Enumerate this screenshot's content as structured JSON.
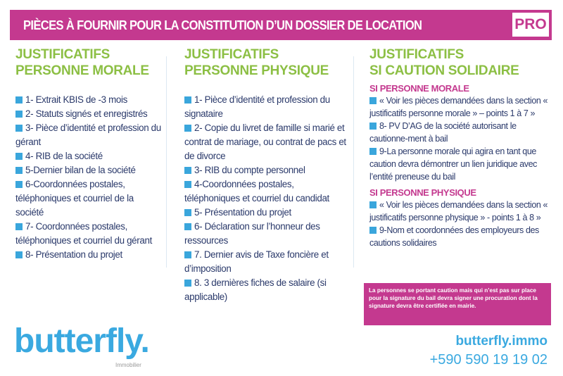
{
  "header": {
    "title": "PIÈCES À FOURNIR POUR LA CONSTITUTION D’UN DOSSIER DE LOCATION",
    "badge": "PRO"
  },
  "columns": [
    {
      "heading1": "JUSTIFICATIFS",
      "heading2": "PERSONNE MORALE",
      "items": [
        "1- Extrait KBIS de -3 mois",
        "2- Statuts signés et enregistrés",
        "3- Pièce d’identité et profession du gérant",
        "4- RIB de la société",
        "5-Dernier bilan de la société",
        "6-Coordonnées postales, téléphoniques et courriel de la société",
        "7- Coordonnées postales, téléphoniques et courriel du gérant",
        "8- Présentation du projet"
      ]
    },
    {
      "heading1": "JUSTIFICATIFS",
      "heading2": "PERSONNE PHYSIQUE",
      "items": [
        "1- Pièce d’identité et profession du signataire",
        "2- Copie du livret de famille si marié et contrat de mariage, ou contrat de pacs et de divorce",
        "3- RIB du compte personnel",
        "4-Coordonnées postales, téléphoniques et courriel du candidat",
        "5- Présentation du projet",
        "6- Déclaration sur l’honneur des ressources",
        "7. Dernier avis de Taxe foncière et d’imposition",
        "8. 3 dernières fiches de salaire (si applicable)"
      ]
    },
    {
      "heading1": "JUSTIFICATIFS",
      "heading2": "SI CAUTION SOLIDAIRE",
      "morale": {
        "title": "SI PERSONNE MORALE",
        "items": [
          "« Voir les pièces demandées dans la section « justificatifs personne morale » – points 1 à 7 »",
          "8- PV D’AG de la société autorisant le cautionne-ment à bail",
          "9-La personne morale qui agira en tant que caution devra démontrer un lien juridique avec l’entité preneuse du bail"
        ]
      },
      "physique": {
        "title": "SI PERSONNE PHYSIQUE",
        "items": [
          "« Voir les pièces demandées dans la section « justificatifs personne physique » - points 1 à 8 »",
          "9-Nom et coordonnées des employeurs des cautions solidaires"
        ]
      }
    }
  ],
  "note": "La personnes se portant caution mais qui n’est pas sur place pour la signature du bail devra signer une procuration dont la signature devra être certifiée en mairie.",
  "logo": {
    "name": "butterfly.",
    "tagline": "Immobilier"
  },
  "contact": {
    "website": "butterfly.immo",
    "phone": "+590 590 19 19 02"
  },
  "colors": {
    "magenta": "#c4398f",
    "green": "#8cbf44",
    "blue": "#3aa6dc",
    "text": "#2b3a6b"
  }
}
